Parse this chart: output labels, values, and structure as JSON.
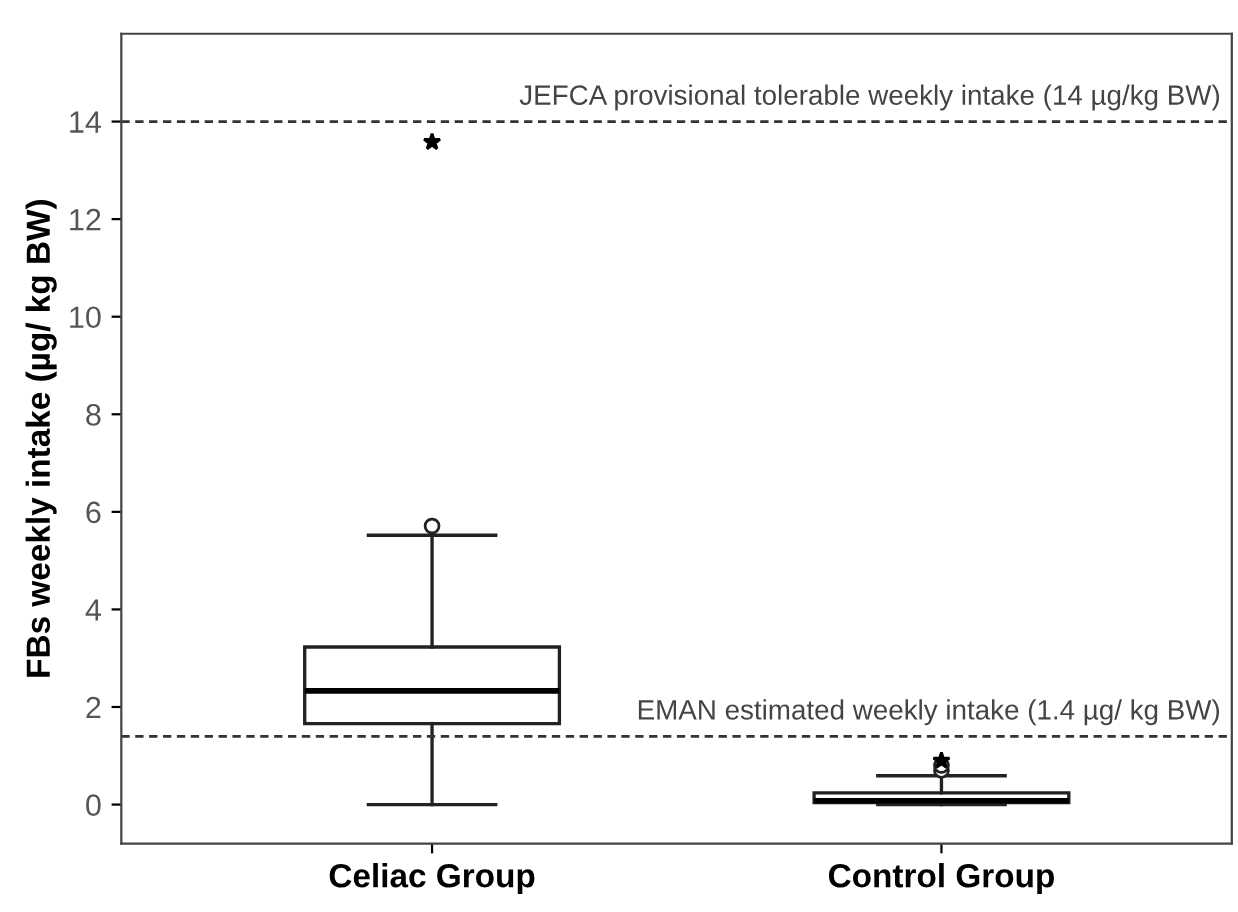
{
  "chart_data": {
    "type": "box",
    "ylabel": "FBs weekly intake (µg/ kg BW)",
    "categories": [
      "Celiac Group",
      "Control Group"
    ],
    "boxes": [
      {
        "low": 0,
        "q1": 1.66,
        "median": 2.33,
        "q3": 3.23,
        "high": 5.52,
        "outliers": [
          5.71,
          13.58
        ]
      },
      {
        "low": 0.0,
        "q1": 0.04,
        "median": 0.08,
        "q3": 0.24,
        "high": 0.59,
        "outliers": [
          0.7,
          0.8,
          0.9
        ]
      }
    ],
    "ylim": [
      -0.8,
      15.8
    ],
    "yticks": [
      0,
      2,
      4,
      6,
      8,
      10,
      12,
      14
    ],
    "grid": false,
    "ref_lines": [
      {
        "axis": "y",
        "value": 14,
        "label": "JEFCA provisional tolerable weekly intake (14 µg/kg BW)",
        "line_style": "dashed"
      },
      {
        "axis": "y",
        "value": 1.4,
        "label": "EMAN estimated weekly intake (1.4 µg/ kg BW)",
        "line_style": "dashed"
      }
    ]
  }
}
